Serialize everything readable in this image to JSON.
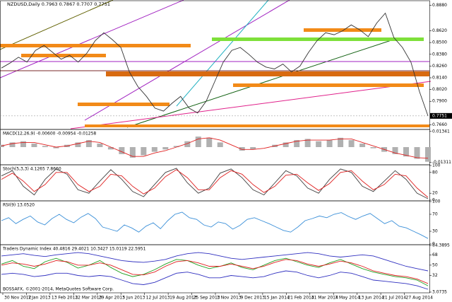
{
  "header": "NZDUSD,Daily  0.7963 0.7867 0.7707 0.7751",
  "footer": "BOSSAFX, ©2001-2014, MetaQuotes Software Corp.",
  "time_axis": {
    "labels": [
      "30 Nov 2012",
      "7 Jan 2013",
      "13 Feb 2013",
      "22 Mar 2013",
      "29 Apr 2013",
      "5 Jun 2013",
      "12 Jul 2013",
      "19 Aug 2013",
      "25 Sep 2013",
      "1 Nov 2013",
      "9 Dec 2013",
      "15 Jan 2014",
      "21 Feb 2014",
      "31 Mar 2014",
      "7 May 2014",
      "13 Jun 2014",
      "21 Jul 2014",
      "27 Aug 2014"
    ]
  },
  "chart_data": [
    {
      "type": "line",
      "ylim": [
        0.762,
        0.892
      ],
      "yticks": [
        {
          "value": 0.888,
          "label": "0.8880"
        },
        {
          "value": 0.862,
          "label": "0.8620"
        },
        {
          "value": 0.85,
          "label": "0.8500"
        },
        {
          "value": 0.838,
          "label": "0.8380"
        },
        {
          "value": 0.826,
          "label": "0.8260"
        },
        {
          "value": 0.814,
          "label": "0.8140"
        },
        {
          "value": 0.802,
          "label": "0.8020"
        },
        {
          "value": 0.79,
          "label": "0.7900"
        },
        {
          "value": 0.766,
          "label": "0.7660"
        }
      ],
      "last_price": {
        "value": 0.7751,
        "label": "0.7751"
      },
      "series": [
        {
          "color": "#333333",
          "values": [
            0.824,
            0.829,
            0.835,
            0.83,
            0.842,
            0.847,
            0.84,
            0.833,
            0.837,
            0.83,
            0.839,
            0.852,
            0.86,
            0.853,
            0.845,
            0.82,
            0.805,
            0.795,
            0.783,
            0.78,
            0.788,
            0.795,
            0.783,
            0.778,
            0.79,
            0.81,
            0.83,
            0.842,
            0.845,
            0.838,
            0.83,
            0.825,
            0.823,
            0.828,
            0.82,
            0.826,
            0.84,
            0.852,
            0.86,
            0.858,
            0.862,
            0.868,
            0.863,
            0.856,
            0.87,
            0.88,
            0.855,
            0.845,
            0.83,
            0.8,
            0.7751
          ]
        }
      ]
    },
    {
      "type": "line",
      "title": "MACD(12,26,9) -0.00600 -0.00954 -0.01258",
      "ylim": [
        -0.0145,
        0.0145
      ],
      "yticks": [
        0.01341,
        -0.01311
      ],
      "series": [
        {
          "color": "#b0b0b0",
          "style": "histogram",
          "values": [
            0.002,
            0.004,
            0.005,
            0.003,
            0.001,
            -0.001,
            0.002,
            0.004,
            0.006,
            0.003,
            -0.002,
            -0.006,
            -0.009,
            -0.007,
            -0.004,
            -0.002,
            0.001,
            0.005,
            0.009,
            0.008,
            0.004,
            0.0,
            -0.003,
            -0.002,
            0.0,
            0.002,
            0.004,
            0.006,
            0.007,
            0.005,
            0.006,
            0.008,
            0.006,
            0.003,
            -0.001,
            -0.004,
            -0.006,
            -0.008,
            -0.01,
            -0.0125
          ]
        },
        {
          "color": "#e02020",
          "values": [
            0.001,
            0.003,
            0.004,
            0.004,
            0.002,
            0.0,
            0.001,
            0.003,
            0.005,
            0.004,
            0.0,
            -0.004,
            -0.008,
            -0.008,
            -0.005,
            -0.003,
            0.0,
            0.003,
            0.007,
            0.008,
            0.006,
            0.002,
            -0.002,
            -0.002,
            -0.001,
            0.001,
            0.003,
            0.005,
            0.006,
            0.006,
            0.006,
            0.007,
            0.007,
            0.004,
            0.001,
            -0.002,
            -0.005,
            -0.007,
            -0.009,
            -0.0095
          ]
        }
      ]
    },
    {
      "type": "line",
      "title": "Stoch(5,3,3) 4.1265 7.8660",
      "ylim": [
        0,
        100
      ],
      "yticks": [
        100,
        80,
        20,
        0
      ],
      "series": [
        {
          "color": "#404040",
          "values": [
            70,
            85,
            40,
            15,
            60,
            90,
            75,
            30,
            20,
            55,
            88,
            60,
            25,
            10,
            45,
            80,
            92,
            50,
            20,
            35,
            78,
            90,
            65,
            30,
            15,
            50,
            85,
            70,
            35,
            20,
            60,
            90,
            80,
            40,
            25,
            55,
            85,
            60,
            20,
            4
          ]
        },
        {
          "color": "#e02020",
          "values": [
            60,
            78,
            55,
            25,
            45,
            80,
            80,
            45,
            25,
            40,
            75,
            70,
            40,
            18,
            35,
            68,
            88,
            65,
            30,
            30,
            65,
            85,
            75,
            45,
            22,
            40,
            72,
            75,
            50,
            28,
            48,
            80,
            85,
            55,
            30,
            45,
            75,
            70,
            35,
            8
          ]
        }
      ]
    },
    {
      "type": "line",
      "title": "RSI(9) 13.0520",
      "ylim": [
        0,
        100
      ],
      "yticks": [
        100,
        70,
        30,
        0
      ],
      "series": [
        {
          "color": "#3a8fd8",
          "values": [
            55,
            62,
            48,
            58,
            66,
            52,
            45,
            60,
            70,
            58,
            50,
            63,
            72,
            60,
            40,
            35,
            30,
            45,
            38,
            28,
            42,
            50,
            36,
            55,
            70,
            75,
            62,
            58,
            45,
            40,
            52,
            48,
            35,
            44,
            58,
            62,
            55,
            48,
            40,
            32,
            28,
            40,
            55,
            60,
            66,
            62,
            70,
            74,
            65,
            58,
            66,
            72,
            60,
            48,
            55,
            42,
            38,
            30,
            22,
            13
          ]
        }
      ]
    },
    {
      "type": "line",
      "title": "Traders Dynamic Index 40.4816 29.4021 10.3427 15.0119 22.5951",
      "ylim": [
        3.0735,
        84.3895
      ],
      "yticks": [
        84.3895,
        68,
        50,
        32,
        3.0735
      ],
      "series": [
        {
          "color": "#3030c0",
          "values": [
            66,
            68,
            70,
            67,
            65,
            68,
            70,
            72,
            70,
            66,
            62,
            58,
            56,
            55,
            57,
            60,
            66,
            70,
            72,
            70,
            66,
            62,
            60,
            62,
            64,
            66,
            68,
            70,
            72,
            70,
            66,
            64,
            66,
            68,
            66,
            60,
            54,
            48,
            44,
            40
          ]
        },
        {
          "color": "#20a020",
          "values": [
            52,
            58,
            48,
            44,
            56,
            62,
            55,
            45,
            50,
            58,
            46,
            36,
            30,
            34,
            42,
            52,
            60,
            58,
            50,
            44,
            48,
            54,
            46,
            42,
            50,
            58,
            62,
            56,
            50,
            46,
            54,
            60,
            52,
            44,
            38,
            34,
            30,
            28,
            24,
            14
          ]
        },
        {
          "color": "#e02020",
          "values": [
            50,
            54,
            52,
            48,
            52,
            58,
            56,
            50,
            50,
            54,
            50,
            42,
            34,
            33,
            38,
            48,
            56,
            58,
            54,
            48,
            48,
            52,
            48,
            44,
            48,
            55,
            60,
            58,
            52,
            48,
            52,
            57,
            54,
            48,
            40,
            36,
            32,
            30,
            26,
            18
          ]
        },
        {
          "color": "#3030c0",
          "values": [
            34,
            36,
            34,
            30,
            32,
            36,
            36,
            32,
            30,
            32,
            30,
            24,
            18,
            16,
            20,
            28,
            36,
            38,
            34,
            28,
            28,
            32,
            30,
            28,
            30,
            36,
            40,
            38,
            32,
            28,
            32,
            38,
            36,
            30,
            24,
            22,
            20,
            18,
            14,
            8
          ]
        }
      ]
    }
  ]
}
